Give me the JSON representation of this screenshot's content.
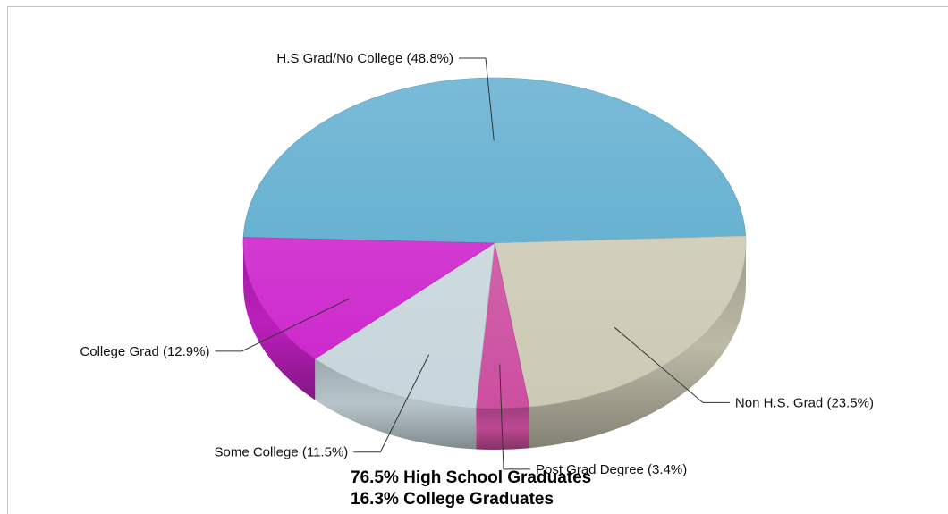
{
  "chart_data": {
    "type": "pie",
    "title": "",
    "slices": [
      {
        "label": "H.S Grad/No College (48.8%)",
        "value": 48.8,
        "color": "#54a8cc"
      },
      {
        "label": "Non H.S. Grad (23.5%)",
        "value": 23.5,
        "color": "#ccc9b4"
      },
      {
        "label": "Post Grad Degree (3.4%)",
        "value": 3.4,
        "color": "#cc4fa0"
      },
      {
        "label": "Some College (11.5%)",
        "value": 11.5,
        "color": "#c7d6dc"
      },
      {
        "label": "College Grad (12.9%)",
        "value": 12.9,
        "color": "#cc22cc"
      }
    ],
    "annotations": [
      "76.5% High School Graduates",
      "16.3% College Graduates"
    ]
  }
}
